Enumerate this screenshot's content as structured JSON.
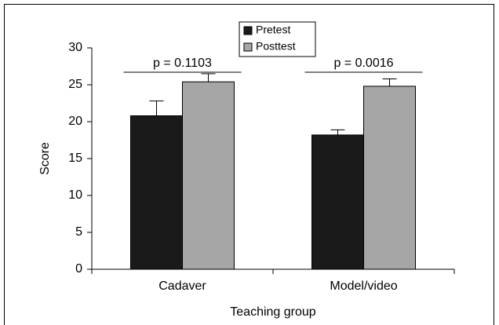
{
  "chart_data": {
    "type": "bar",
    "categories": [
      "Cadaver",
      "Model/video"
    ],
    "series": [
      {
        "name": "Pretest",
        "color": "#1a1a1a",
        "values": [
          20.8,
          18.2
        ],
        "errors": [
          2.0,
          0.7
        ]
      },
      {
        "name": "Posttest",
        "color": "#a6a6a6",
        "values": [
          25.4,
          24.8
        ],
        "errors": [
          1.1,
          1.0
        ]
      }
    ],
    "ylim": [
      0,
      30
    ],
    "yticks": [
      0,
      5,
      10,
      15,
      20,
      25,
      30
    ],
    "xlabel": "Teaching group",
    "ylabel": "Score",
    "annotations": [
      "p = 0.1103",
      "p = 0.0016"
    ],
    "legend": "top"
  }
}
